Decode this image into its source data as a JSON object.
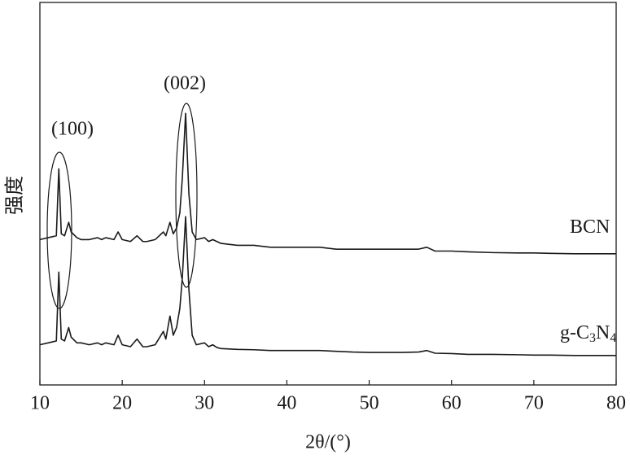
{
  "chart_data": {
    "type": "line",
    "xlabel": "2θ/(°)",
    "ylabel": "强度",
    "x": [
      10,
      11,
      12,
      12.3,
      12.6,
      13,
      13.5,
      13.8,
      14.5,
      15,
      16,
      17,
      17.5,
      18,
      19,
      19.5,
      20,
      21,
      21.8,
      22.5,
      23,
      24,
      25,
      25.3,
      25.8,
      26.2,
      26.6,
      27,
      27.3,
      27.7,
      28.1,
      28.5,
      29,
      30,
      30.5,
      31,
      31.5,
      32,
      34,
      36,
      38,
      40,
      42,
      44,
      46,
      48,
      50,
      52,
      54,
      56,
      57,
      58,
      60,
      62,
      65,
      68,
      70,
      72,
      75,
      78,
      80
    ],
    "series": [
      {
        "name": "BCN",
        "color": "#1a1a1a",
        "values": [
          38,
          38.5,
          39,
          56.5,
          39.5,
          39,
          42.5,
          40,
          38.5,
          38,
          38,
          38.5,
          38,
          38.5,
          38,
          40,
          38,
          37.5,
          39,
          37.5,
          37.5,
          38,
          40,
          39,
          42.5,
          39.5,
          41,
          45,
          54,
          71,
          50,
          40,
          38,
          38.5,
          37.5,
          38,
          37.5,
          37,
          36.5,
          36.5,
          36,
          36,
          36,
          36,
          35.5,
          35.5,
          35.5,
          35.5,
          35.5,
          35.5,
          36,
          35,
          35,
          34.8,
          34.6,
          34.5,
          34.5,
          34.4,
          34.3,
          34.3,
          34.3
        ]
      },
      {
        "name": "g-C3N4",
        "color": "#1a1a1a",
        "values": [
          10.5,
          11,
          11.5,
          29.5,
          12,
          11.5,
          15,
          12.5,
          11,
          11,
          10.5,
          11,
          10.5,
          11,
          10.5,
          13,
          10.5,
          10,
          12,
          10,
          10,
          10.5,
          14,
          12,
          18,
          13,
          15,
          20,
          28,
          44,
          25,
          13,
          10.5,
          11,
          10,
          10.5,
          9.8,
          9.5,
          9.3,
          9.2,
          9,
          9,
          9,
          9,
          8.8,
          8.6,
          8.5,
          8.5,
          8.5,
          8.6,
          9,
          8.3,
          8.2,
          8,
          8,
          7.9,
          7.8,
          7.8,
          7.7,
          7.7,
          7.7
        ]
      }
    ],
    "annotations": [
      {
        "text": "(100)"
      },
      {
        "text": "(002)"
      }
    ],
    "xlim": [
      10,
      80
    ],
    "xticks": [
      10,
      20,
      30,
      40,
      50,
      60,
      70,
      80
    ],
    "ylim": [
      0,
      100
    ]
  }
}
